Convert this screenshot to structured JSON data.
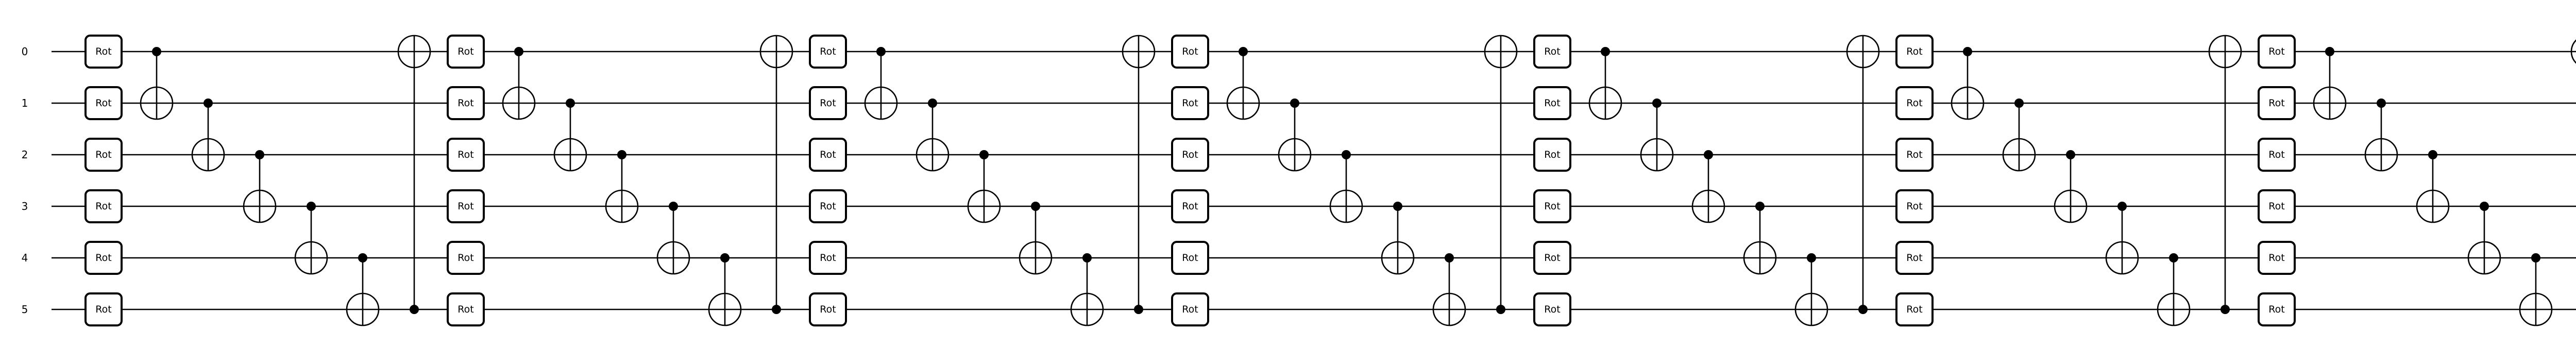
{
  "circuit": {
    "wire_labels": [
      "0",
      "1",
      "2",
      "3",
      "4",
      "5"
    ],
    "layers": 7,
    "rotation_gate_label": "Rot",
    "entangling_pattern": [
      {
        "control": 0,
        "target": 1
      },
      {
        "control": 1,
        "target": 2
      },
      {
        "control": 2,
        "target": 3
      },
      {
        "control": 3,
        "target": 4
      },
      {
        "control": 4,
        "target": 5
      },
      {
        "control": 5,
        "target": 0
      }
    ],
    "measure_all_wires": true
  }
}
